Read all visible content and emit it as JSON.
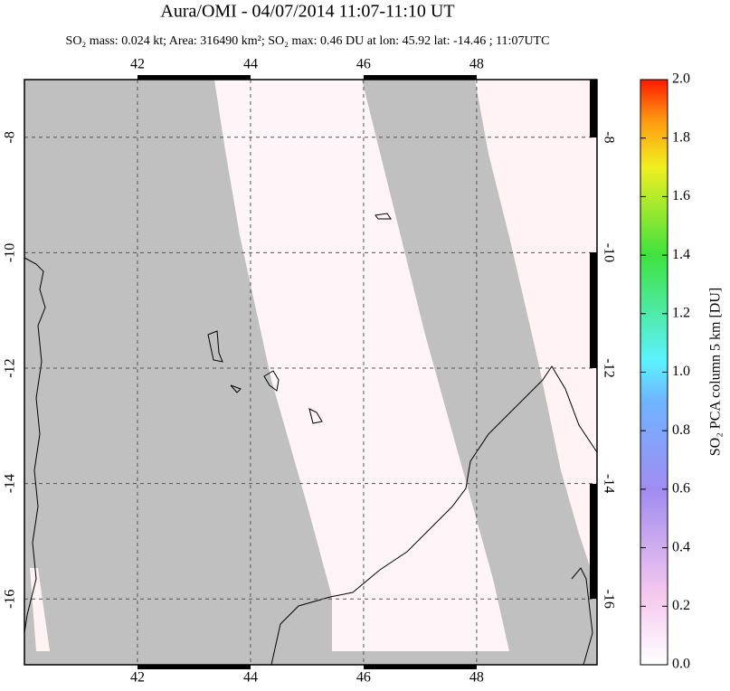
{
  "chart_data": {
    "type": "map",
    "title": "Aura/OMI - 04/07/2014 11:07-11:10 UT",
    "subtitle": "SO₂ mass: 0.024 kt; Area: 316490 km²; SO₂ max: 0.46 DU at lon: 45.92 lat: -14.46 ; 11:07UTC",
    "xlim": [
      40,
      50.13
    ],
    "ylim": [
      -17.14,
      -7
    ],
    "xticks": [
      42,
      44,
      46,
      48
    ],
    "yticks": [
      -8,
      -10,
      -12,
      -14,
      -16
    ],
    "grid": true,
    "colorbar": {
      "label": "SO₂ PCA column 5 km [DU]",
      "lim": [
        0,
        2
      ],
      "ticks": [
        {
          "value": 0,
          "label": "0.0"
        },
        0.2,
        0.4,
        0.6,
        0.8,
        {
          "value": 1,
          "label": "1.0"
        },
        1.2,
        1.4,
        1.6,
        1.8,
        {
          "value": 2,
          "label": "2.0"
        }
      ]
    }
  }
}
